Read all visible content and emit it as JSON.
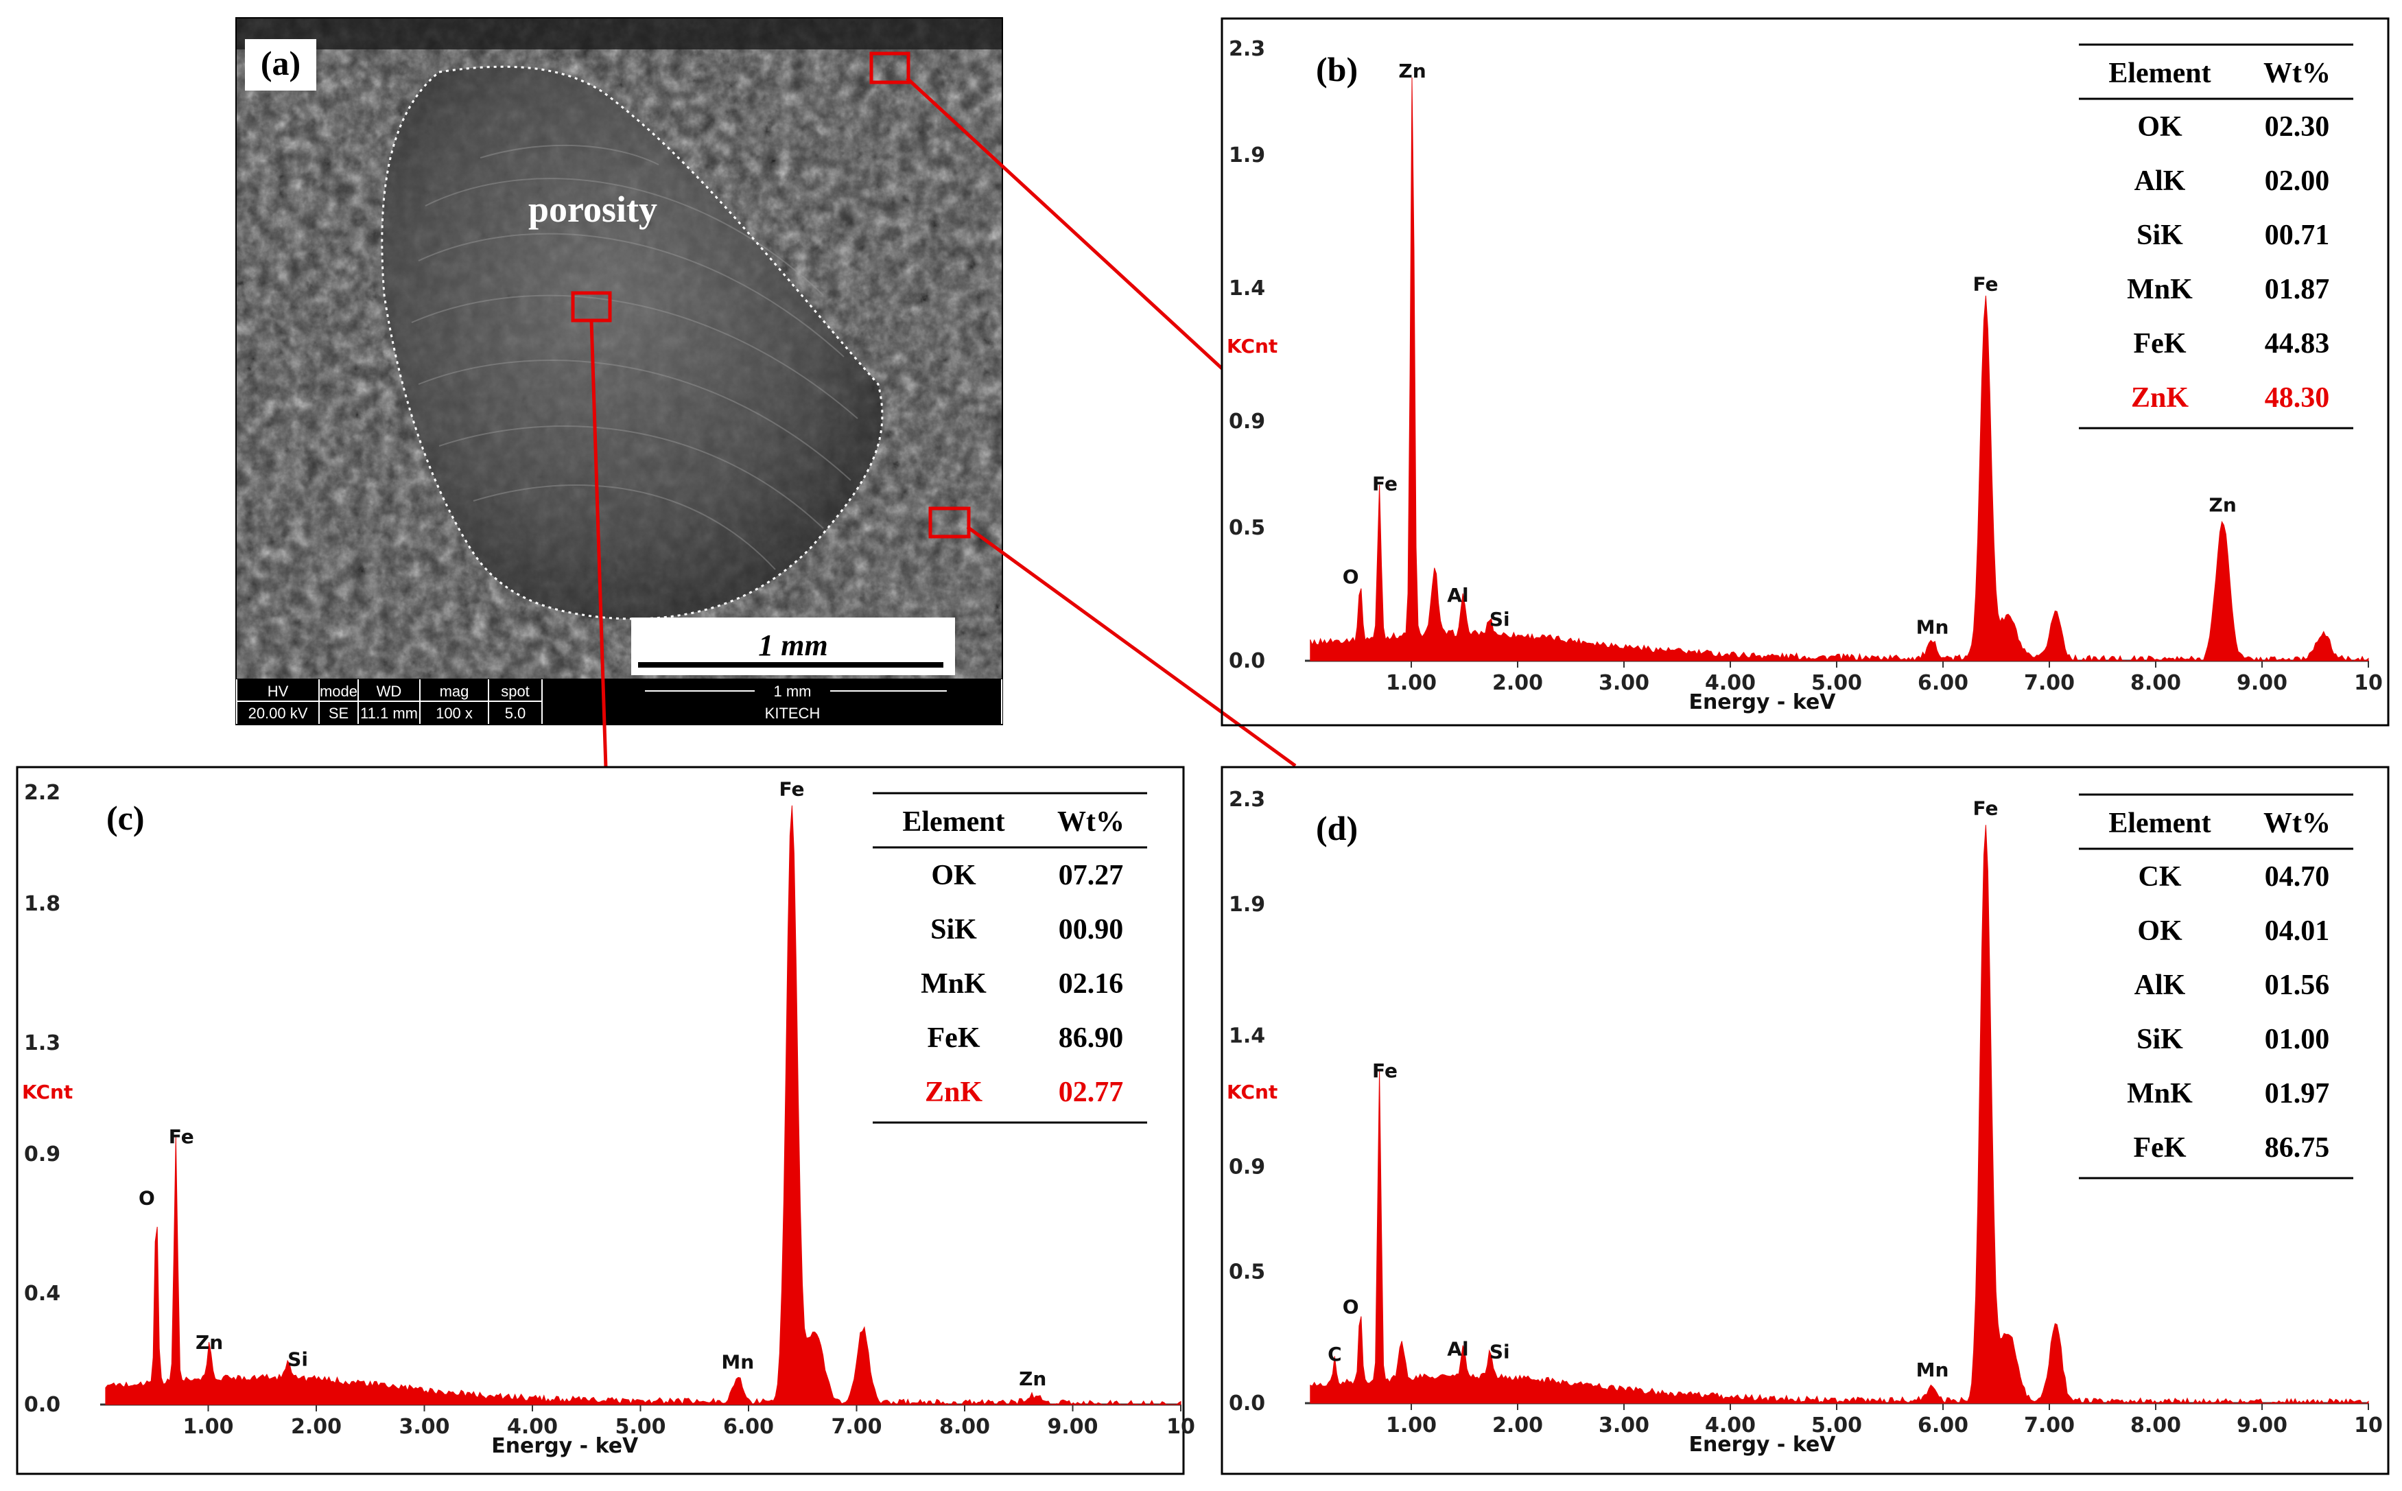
{
  "figure": {
    "sem_panel": {
      "label": "(a)",
      "annotation": "porosity",
      "scale_bar_text": "1 mm",
      "info_bar": {
        "headers": [
          "HV",
          "mode",
          "WD",
          "mag",
          "spot"
        ],
        "values": [
          "20.00 kV",
          "SE",
          "11.1 mm",
          "100 x",
          "5.0"
        ],
        "scale": "1 mm",
        "org": "KITECH"
      }
    }
  },
  "chart_data": [
    {
      "id": "b",
      "type": "bar",
      "panel_label": "(b)",
      "xlabel": "Energy - keV",
      "ylabel": "KCnt",
      "xlim": [
        0,
        10
      ],
      "ylim": [
        0,
        2.3
      ],
      "x_ticks": [
        "1.00",
        "2.00",
        "3.00",
        "4.00",
        "5.00",
        "6.00",
        "7.00",
        "8.00",
        "9.00",
        "10"
      ],
      "y_ticks": [
        "0.0",
        "0.5",
        "0.9",
        "1.4",
        "1.9",
        "2.3"
      ],
      "peaks": [
        {
          "label": "O",
          "x": 0.52,
          "y": 0.25
        },
        {
          "label": "Fe",
          "x": 0.7,
          "y": 0.6
        },
        {
          "label": "Zn",
          "x": 1.01,
          "y": 2.15
        },
        {
          "label": "Al",
          "x": 1.49,
          "y": 0.18
        },
        {
          "label": "Si",
          "x": 1.74,
          "y": 0.09
        },
        {
          "label": "Mn",
          "x": 5.9,
          "y": 0.06
        },
        {
          "label": "Fe",
          "x": 6.4,
          "y": 1.35
        },
        {
          "label": "Zn",
          "x": 8.63,
          "y": 0.52
        }
      ],
      "unlabeled_peaks": [
        {
          "x": 7.06,
          "y": 0.18
        },
        {
          "x": 9.57,
          "y": 0.1
        }
      ],
      "table": {
        "headers": [
          "Element",
          "Wt%"
        ],
        "rows": [
          {
            "el": "OK",
            "wt": "02.30"
          },
          {
            "el": "AlK",
            "wt": "02.00"
          },
          {
            "el": "SiK",
            "wt": "00.71"
          },
          {
            "el": "MnK",
            "wt": "01.87"
          },
          {
            "el": "FeK",
            "wt": "44.83"
          },
          {
            "el": "ZnK",
            "wt": "48.30",
            "highlight": true
          }
        ]
      }
    },
    {
      "id": "c",
      "type": "bar",
      "panel_label": "(c)",
      "xlabel": "Energy - keV",
      "ylabel": "KCnt",
      "xlim": [
        0,
        10
      ],
      "ylim": [
        0,
        2.2
      ],
      "x_ticks": [
        "1.00",
        "2.00",
        "3.00",
        "4.00",
        "5.00",
        "6.00",
        "7.00",
        "8.00",
        "9.00",
        "10"
      ],
      "y_ticks": [
        "0.0",
        "0.4",
        "0.9",
        "1.3",
        "1.8",
        "2.2"
      ],
      "peaks": [
        {
          "label": "O",
          "x": 0.52,
          "y": 0.68
        },
        {
          "label": "Fe",
          "x": 0.7,
          "y": 0.9
        },
        {
          "label": "Zn",
          "x": 1.01,
          "y": 0.16
        },
        {
          "label": "Si",
          "x": 1.74,
          "y": 0.1
        },
        {
          "label": "Mn",
          "x": 5.9,
          "y": 0.09
        },
        {
          "label": "Fe",
          "x": 6.4,
          "y": 2.15
        },
        {
          "label": "Zn",
          "x": 8.63,
          "y": 0.03
        }
      ],
      "unlabeled_peaks": [
        {
          "x": 7.06,
          "y": 0.27
        }
      ],
      "table": {
        "headers": [
          "Element",
          "Wt%"
        ],
        "rows": [
          {
            "el": "OK",
            "wt": "07.27"
          },
          {
            "el": "SiK",
            "wt": "00.90"
          },
          {
            "el": "MnK",
            "wt": "02.16"
          },
          {
            "el": "FeK",
            "wt": "86.90"
          },
          {
            "el": "ZnK",
            "wt": "02.77",
            "highlight": true
          }
        ]
      }
    },
    {
      "id": "d",
      "type": "bar",
      "panel_label": "(d)",
      "xlabel": "Energy - keV",
      "ylabel": "KCnt",
      "xlim": [
        0,
        10
      ],
      "ylim": [
        0,
        2.3
      ],
      "x_ticks": [
        "1.00",
        "2.00",
        "3.00",
        "4.00",
        "5.00",
        "6.00",
        "7.00",
        "8.00",
        "9.00",
        "10"
      ],
      "y_ticks": [
        "0.0",
        "0.5",
        "0.9",
        "1.4",
        "1.9",
        "2.3"
      ],
      "peaks": [
        {
          "label": "C",
          "x": 0.28,
          "y": 0.12
        },
        {
          "label": "O",
          "x": 0.52,
          "y": 0.3
        },
        {
          "label": "Fe",
          "x": 0.7,
          "y": 1.2
        },
        {
          "label": "Al",
          "x": 1.49,
          "y": 0.14
        },
        {
          "label": "Si",
          "x": 1.74,
          "y": 0.13
        },
        {
          "label": "Mn",
          "x": 5.9,
          "y": 0.06
        },
        {
          "label": "Fe",
          "x": 6.4,
          "y": 2.2
        }
      ],
      "unlabeled_peaks": [
        {
          "x": 7.06,
          "y": 0.3
        }
      ],
      "table": {
        "headers": [
          "Element",
          "Wt%"
        ],
        "rows": [
          {
            "el": "CK",
            "wt": "04.70"
          },
          {
            "el": "OK",
            "wt": "04.01"
          },
          {
            "el": "AlK",
            "wt": "01.56"
          },
          {
            "el": "SiK",
            "wt": "01.00"
          },
          {
            "el": "MnK",
            "wt": "01.97"
          },
          {
            "el": "FeK",
            "wt": "86.75"
          }
        ]
      }
    }
  ]
}
